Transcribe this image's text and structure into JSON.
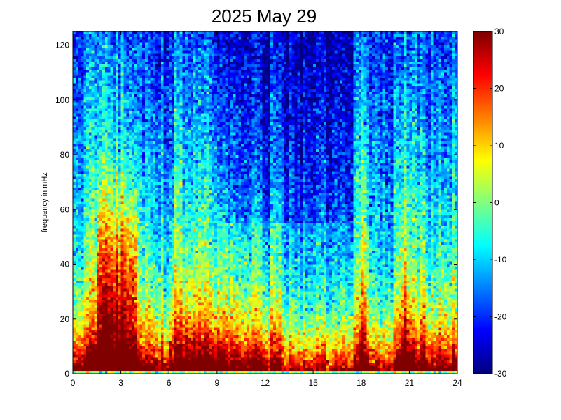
{
  "chart_data": {
    "type": "heatmap",
    "title": "2025 May 29",
    "xlabel": "",
    "ylabel": "frequency in mHz",
    "xlim": [
      0,
      24
    ],
    "ylim": [
      0,
      125
    ],
    "x_ticks": [
      0,
      3,
      6,
      9,
      12,
      15,
      18,
      21,
      24
    ],
    "x_tick_labels": [
      "0",
      "3",
      "6",
      "9",
      "12",
      "15",
      "18",
      "21",
      "24"
    ],
    "y_ticks": [
      0,
      20,
      40,
      60,
      80,
      100,
      120
    ],
    "y_tick_labels": [
      "0",
      "20",
      "40",
      "60",
      "80",
      "100",
      "120"
    ],
    "colormap": "jet",
    "clim": [
      -30,
      30
    ],
    "colorbar_ticks": [
      -30,
      -20,
      -10,
      0,
      10,
      20,
      30
    ],
    "colorbar_tick_labels": [
      "-30",
      "-20",
      "-10",
      "0",
      "10",
      "20",
      "30"
    ],
    "x_bins": 144,
    "y_bins": 125,
    "description_values": {
      "hour_bands_high_power": [
        [
          0.5,
          4.5
        ],
        [
          17.7,
          18.5
        ],
        [
          20.2,
          21.3
        ],
        [
          21.6,
          22.2
        ]
      ],
      "low_frequency_floor_mHz": 10
    }
  }
}
